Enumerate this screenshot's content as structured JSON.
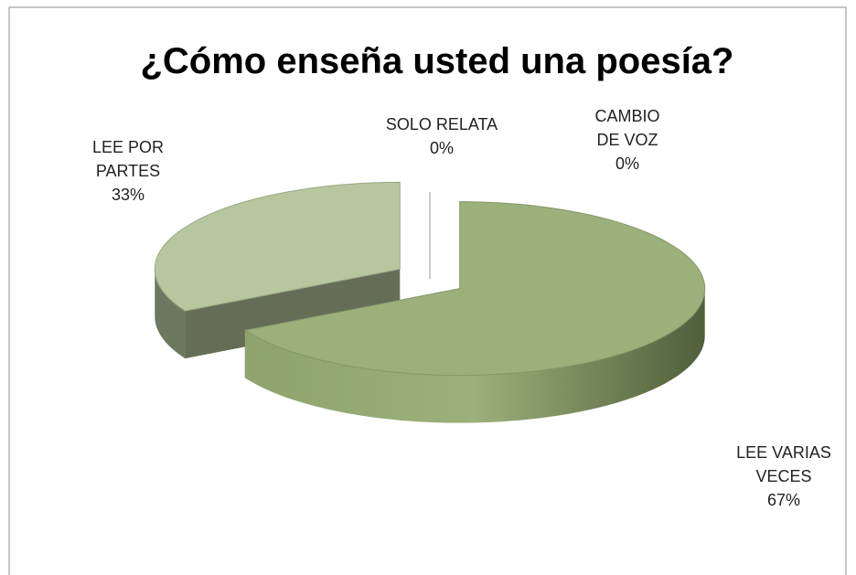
{
  "chart_data": {
    "type": "pie",
    "title": "¿Cómo enseña usted una poesía?",
    "categories": [
      "LEE VARIAS VECES",
      "LEE POR PARTES",
      "SOLO RELATA",
      "CAMBIO DE VOZ"
    ],
    "values": [
      67,
      33,
      0,
      0
    ],
    "value_labels": [
      "67%",
      "33%",
      "0%",
      "0%"
    ],
    "colors": [
      "#9bb07a",
      "#b7c69e",
      "#c9d6b5",
      "#a8bb8a"
    ],
    "three_d": true
  }
}
